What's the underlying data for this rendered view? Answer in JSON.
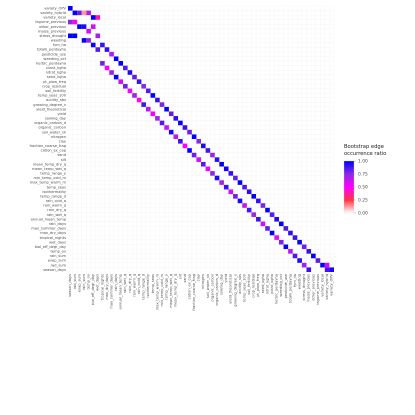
{
  "chart_data": {
    "type": "heatmap",
    "variables": [
      "variety_OPV",
      "variety_hybrid",
      "variety_local",
      "legume_previous",
      "other_previous",
      "maize_previous",
      "stress_drought",
      "weeding",
      "fym_ha",
      "totalk_perdayha",
      "pesticide_use",
      "weeding_oct",
      "herbic_perdayha",
      "plant_kgha",
      "nitrot_kgha",
      "seed_kgha",
      "pt_plow_freq",
      "crop_residual",
      "soil_fertility",
      "temp_seas_100",
      "acidity_sbs",
      "growing_degree_x",
      "yield_theoretical",
      "yield",
      "sowing_day",
      "organic_carbon_d",
      "organic_carbon",
      "soil_water_sh",
      "nitrogen",
      "clay",
      "fraction_coarse_frag",
      "cation_ex_cap",
      "sand",
      "silt",
      "mean_temp_dry_q",
      "mean_temp_wet_q",
      "temp_range_y",
      "min_temp_cold_m",
      "max_temp_warm_m",
      "temp_seas",
      "isothermality",
      "temp_range_d",
      "rain_cold_q",
      "rain_warm_q",
      "rain_dry_q",
      "rain_wet_q",
      "annual_mean_temp",
      "rain_days",
      "max_summer_days",
      "max_dry_days",
      "tropical_nights",
      "wet_days",
      "biol_eff_degr_day",
      "temp_ov",
      "rain_sum",
      "evap_sum",
      "rad_sum",
      "season_days"
    ],
    "cells": [
      [
        0,
        57,
        1
      ],
      [
        1,
        56,
        1
      ],
      [
        2,
        56,
        0.82
      ],
      [
        3,
        56,
        0.13
      ],
      [
        4,
        56,
        0.67
      ],
      [
        5,
        55,
        1
      ],
      [
        6,
        55,
        0.4
      ],
      [
        0,
        54,
        0.75
      ],
      [
        1,
        54,
        0.5
      ],
      [
        2,
        53,
        1
      ],
      [
        3,
        53,
        0.95
      ],
      [
        5,
        53,
        0.6
      ],
      [
        4,
        52,
        0.58
      ],
      [
        0,
        51,
        1
      ],
      [
        1,
        51,
        1
      ],
      [
        6,
        51,
        0.7
      ],
      [
        3,
        50,
        1
      ],
      [
        4,
        50,
        0.75
      ],
      [
        5,
        49,
        0.98
      ],
      [
        6,
        48,
        0.85
      ],
      [
        7,
        49,
        0.9
      ],
      [
        8,
        48,
        0.92
      ],
      [
        9,
        47,
        0.65
      ],
      [
        10,
        46,
        1
      ],
      [
        11,
        45,
        1
      ],
      [
        7,
        45,
        0.8
      ],
      [
        8,
        44,
        0.5
      ],
      [
        12,
        44,
        0.85
      ],
      [
        13,
        43,
        0.95
      ],
      [
        9,
        43,
        0.7
      ],
      [
        14,
        42,
        0.82
      ],
      [
        10,
        42,
        1
      ],
      [
        15,
        41,
        0.9
      ],
      [
        11,
        41,
        0.6
      ],
      [
        16,
        40,
        0.75
      ],
      [
        12,
        40,
        0.8
      ],
      [
        17,
        39,
        0.85
      ],
      [
        13,
        39,
        0.55
      ],
      [
        18,
        38,
        1
      ],
      [
        14,
        38,
        0.7
      ],
      [
        19,
        37,
        0.9
      ],
      [
        15,
        37,
        0.45
      ],
      [
        20,
        36,
        0.78
      ],
      [
        16,
        36,
        0.88
      ],
      [
        21,
        35,
        1
      ],
      [
        17,
        35,
        0.62
      ],
      [
        22,
        34,
        0.82
      ],
      [
        18,
        34,
        0.52
      ],
      [
        23,
        33,
        0.92
      ],
      [
        19,
        33,
        0.7
      ],
      [
        24,
        32,
        1
      ],
      [
        20,
        32,
        0.85
      ],
      [
        25,
        31,
        0.9
      ],
      [
        21,
        31,
        0.6
      ],
      [
        26,
        30,
        0.8
      ],
      [
        22,
        30,
        0.96
      ],
      [
        27,
        29,
        1
      ],
      [
        23,
        29,
        0.65
      ],
      [
        28,
        28,
        0.75
      ],
      [
        24,
        28,
        0.9
      ],
      [
        29,
        27,
        0.95
      ],
      [
        25,
        27,
        0.5
      ],
      [
        30,
        26,
        0.88
      ],
      [
        26,
        26,
        1
      ],
      [
        31,
        25,
        0.7
      ],
      [
        27,
        25,
        0.8
      ],
      [
        32,
        24,
        0.92
      ],
      [
        28,
        24,
        0.6
      ],
      [
        33,
        23,
        1
      ],
      [
        29,
        23,
        0.85
      ],
      [
        34,
        22,
        0.98
      ],
      [
        30,
        22,
        0.55
      ],
      [
        35,
        21,
        0.9
      ],
      [
        31,
        21,
        0.75
      ],
      [
        36,
        20,
        0.82
      ],
      [
        32,
        20,
        0.95
      ],
      [
        37,
        19,
        1
      ],
      [
        33,
        19,
        0.68
      ],
      [
        38,
        18,
        0.86
      ],
      [
        34,
        18,
        0.9
      ],
      [
        39,
        17,
        0.92
      ],
      [
        35,
        17,
        0.58
      ],
      [
        40,
        16,
        1
      ],
      [
        36,
        16,
        0.8
      ],
      [
        41,
        15,
        0.9
      ],
      [
        37,
        15,
        0.96
      ],
      [
        42,
        14,
        0.78
      ],
      [
        38,
        14,
        0.62
      ],
      [
        43,
        13,
        1
      ],
      [
        39,
        13,
        0.88
      ],
      [
        44,
        12,
        0.84
      ],
      [
        40,
        12,
        0.7
      ],
      [
        45,
        11,
        0.95
      ],
      [
        41,
        11,
        0.9
      ],
      [
        46,
        10,
        1
      ],
      [
        42,
        10,
        0.6
      ],
      [
        47,
        9,
        0.86
      ],
      [
        43,
        9,
        0.82
      ],
      [
        48,
        8,
        0.92
      ],
      [
        44,
        8,
        1
      ],
      [
        49,
        7,
        0.9
      ],
      [
        45,
        7,
        0.55
      ],
      [
        50,
        6,
        0.98
      ],
      [
        46,
        6,
        0.78
      ],
      [
        51,
        5,
        0.8
      ],
      [
        47,
        5,
        1
      ],
      [
        52,
        4,
        0.9
      ],
      [
        48,
        4,
        0.65
      ],
      [
        53,
        3,
        1
      ],
      [
        49,
        3,
        0.86
      ],
      [
        54,
        2,
        0.84
      ],
      [
        50,
        2,
        0.94
      ],
      [
        55,
        1,
        1
      ],
      [
        51,
        1,
        0.7
      ],
      [
        56,
        0,
        0.88
      ],
      [
        52,
        0,
        0.9
      ],
      [
        57,
        0,
        0.96
      ],
      [
        56,
        1,
        0.6
      ]
    ],
    "legend": {
      "title": "Bootstrap edge\noccurrence ratio",
      "ticks": [
        "1.00",
        "0.75",
        "0.50",
        "0.25",
        "0.00"
      ],
      "colors": [
        "#0000ff",
        "#8a2be2",
        "#ff00ff",
        "#ff3344",
        "#ffffff"
      ]
    }
  }
}
